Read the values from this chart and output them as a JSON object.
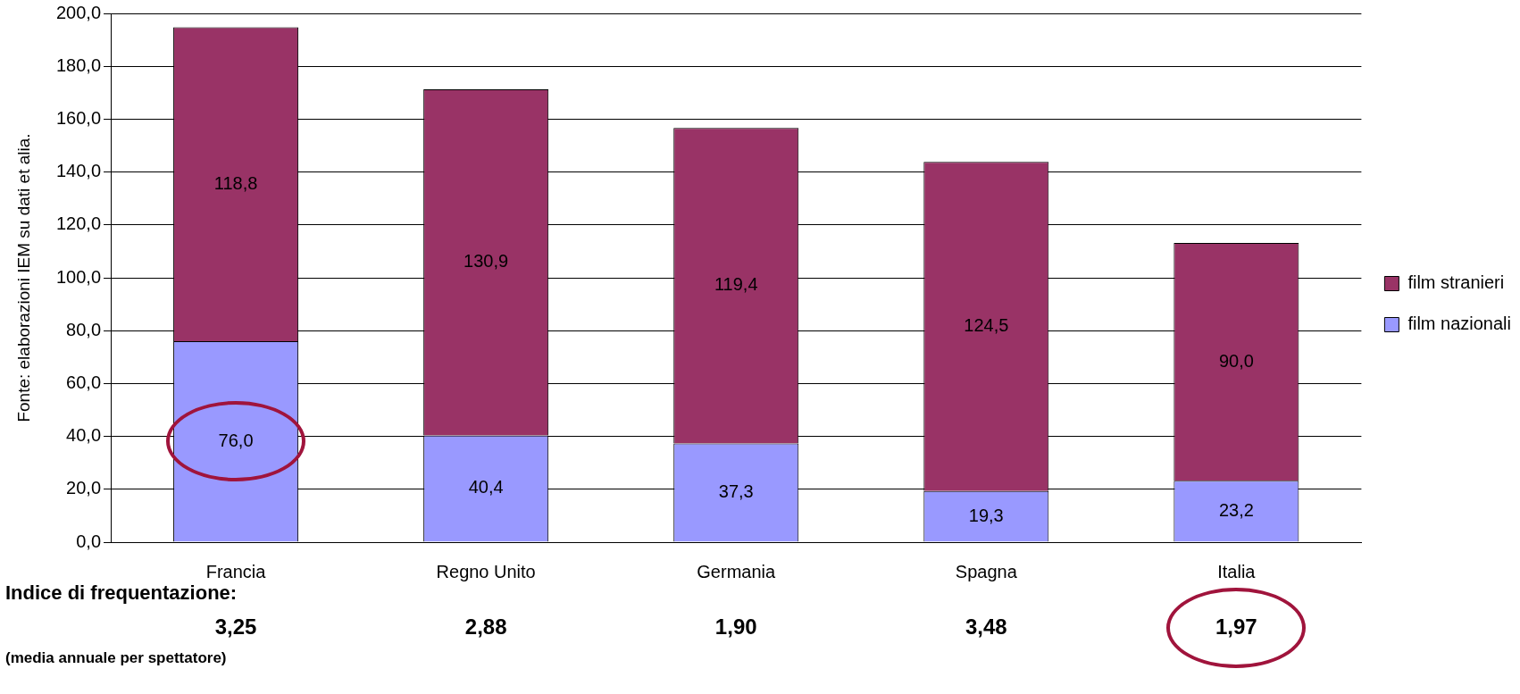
{
  "chart_data": {
    "type": "bar",
    "stacked": true,
    "categories": [
      "Francia",
      "Regno Unito",
      "Germania",
      "Spagna",
      "Italia"
    ],
    "series": [
      {
        "name": "film nazionali",
        "color": "#9999ff",
        "values": [
          76.0,
          40.4,
          37.3,
          19.3,
          23.2
        ],
        "value_labels": [
          "76,0",
          "40,4",
          "37,3",
          "19,3",
          "23,2"
        ]
      },
      {
        "name": "film stranieri",
        "color": "#993366",
        "values": [
          118.8,
          130.9,
          119.4,
          124.5,
          90.0
        ],
        "value_labels": [
          "118,8",
          "130,9",
          "119,4",
          "124,5",
          "90,0"
        ]
      }
    ],
    "ylim": [
      0,
      200
    ],
    "yticks": [
      {
        "value": 0,
        "label": "0,0"
      },
      {
        "value": 20,
        "label": "20,0"
      },
      {
        "value": 40,
        "label": "40,0"
      },
      {
        "value": 60,
        "label": "60,0"
      },
      {
        "value": 80,
        "label": "80,0"
      },
      {
        "value": 100,
        "label": "100,0"
      },
      {
        "value": 120,
        "label": "120,0"
      },
      {
        "value": 140,
        "label": "140,0"
      },
      {
        "value": 160,
        "label": "160,0"
      },
      {
        "value": 180,
        "label": "180,0"
      },
      {
        "value": 200,
        "label": "200,0"
      }
    ],
    "grid": "y",
    "legend": "right",
    "annotations": [
      "Fonte: elaborazioni IEM su dati et alia.",
      "Indice di frequentazione:",
      "(media annuale per spettatore)",
      "3,25",
      "2,88",
      "1,90",
      "3,48",
      "1,97"
    ]
  }
}
